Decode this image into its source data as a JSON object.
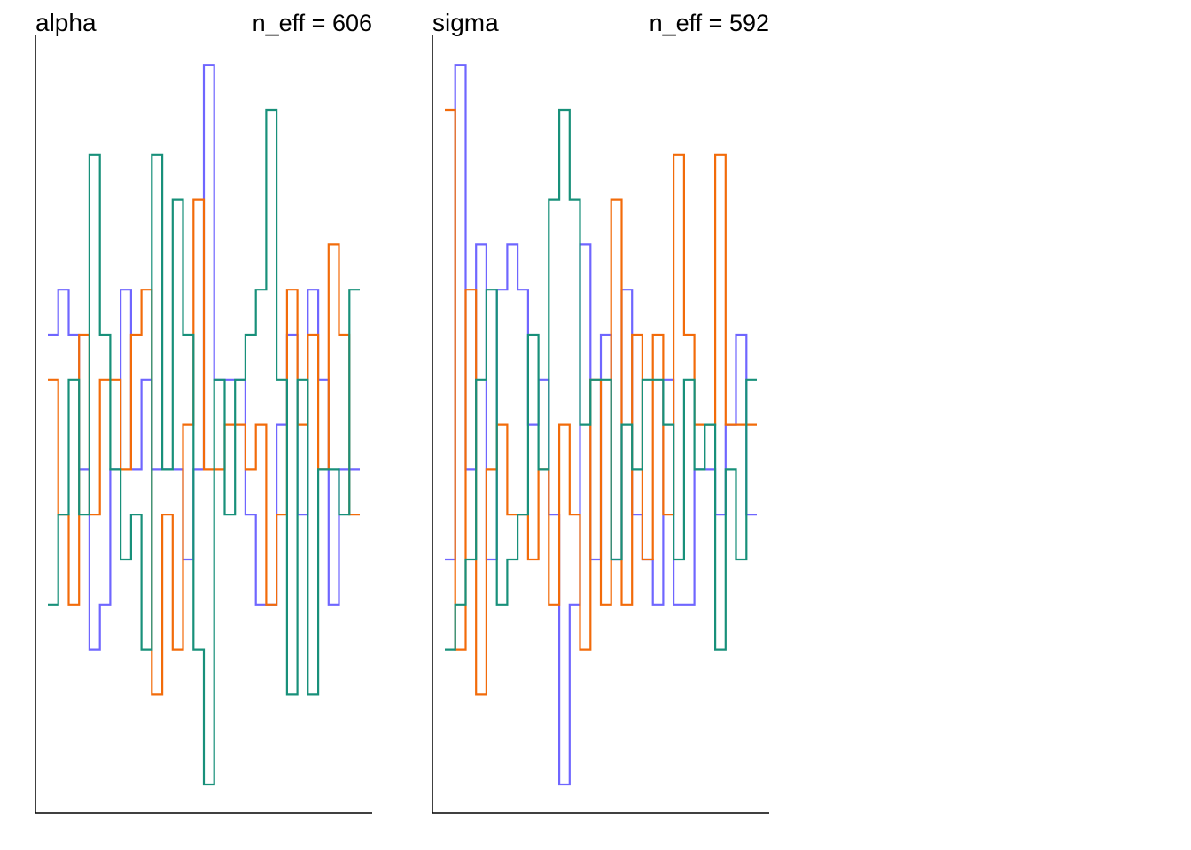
{
  "chart_data": [
    {
      "type": "line",
      "style": "step (trace rank plot)",
      "title": "alpha",
      "annotation": "n_eff = 606",
      "bins": 30,
      "grid": false,
      "series": [
        {
          "color": "#6f66ff",
          "values": [
            10,
            11,
            10,
            7,
            3,
            4,
            7,
            11,
            7,
            9,
            7,
            7,
            7,
            5,
            7,
            16,
            9,
            9,
            9,
            6,
            4,
            4,
            8,
            10,
            6,
            11,
            9,
            4,
            7,
            7
          ]
        },
        {
          "color": "#f26b0a",
          "values": [
            9,
            6,
            4,
            10,
            6,
            9,
            9,
            7,
            10,
            11,
            2,
            6,
            3,
            8,
            13,
            7,
            7,
            8,
            8,
            7,
            8,
            4,
            6,
            11,
            8,
            10,
            7,
            12,
            10,
            6
          ]
        },
        {
          "color": "#18907a",
          "values": [
            4,
            6,
            9,
            6,
            14,
            10,
            7,
            5,
            6,
            3,
            14,
            7,
            13,
            10,
            3,
            0,
            9,
            6,
            9,
            10,
            11,
            15,
            9,
            2,
            9,
            2,
            7,
            7,
            6,
            11
          ]
        }
      ]
    },
    {
      "type": "line",
      "style": "step (trace rank plot)",
      "title": "sigma",
      "annotation": "n_eff = 592",
      "bins": 30,
      "grid": false,
      "series": [
        {
          "color": "#6f66ff",
          "values": [
            5,
            16,
            7,
            12,
            5,
            11,
            12,
            11,
            8,
            9,
            6,
            0,
            4,
            12,
            5,
            10,
            5,
            11,
            6,
            5,
            4,
            9,
            4,
            4,
            7,
            7,
            6,
            8,
            10,
            6
          ]
        },
        {
          "color": "#f26b0a",
          "values": [
            15,
            3,
            11,
            2,
            7,
            8,
            6,
            6,
            5,
            7,
            4,
            8,
            6,
            3,
            9,
            4,
            13,
            4,
            10,
            5,
            10,
            6,
            14,
            10,
            8,
            8,
            14,
            8,
            8,
            8
          ]
        },
        {
          "color": "#18907a",
          "values": [
            3,
            4,
            5,
            9,
            11,
            4,
            5,
            6,
            10,
            7,
            13,
            15,
            13,
            8,
            9,
            9,
            5,
            8,
            7,
            9,
            9,
            8,
            5,
            9,
            7,
            8,
            3,
            7,
            5,
            9
          ]
        }
      ]
    }
  ]
}
